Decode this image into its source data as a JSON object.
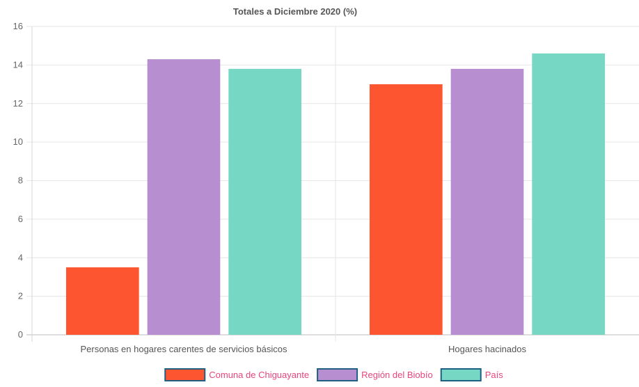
{
  "chart_data": {
    "type": "bar",
    "title": "Totales a Diciembre 2020 (%)",
    "xlabel": "",
    "ylabel": "",
    "categories": [
      "Personas en hogares carentes de servicios básicos",
      "Hogares hacinados"
    ],
    "series": [
      {
        "name": "Comuna de Chiguayante",
        "values": [
          3.5,
          13.0
        ],
        "color": "#fd5530"
      },
      {
        "name": "Región del Biobío",
        "values": [
          14.3,
          13.8
        ],
        "color": "#b78ecf"
      },
      {
        "name": "País",
        "values": [
          13.8,
          14.6
        ],
        "color": "#76d7c4"
      }
    ],
    "ylim": [
      0,
      16
    ],
    "yticks": [
      0,
      2,
      4,
      6,
      8,
      10,
      12,
      14,
      16
    ],
    "grid": true,
    "legend_position": "bottom",
    "legend_text_color": "#e8457a",
    "legend_border_color": "#1f5f82"
  }
}
